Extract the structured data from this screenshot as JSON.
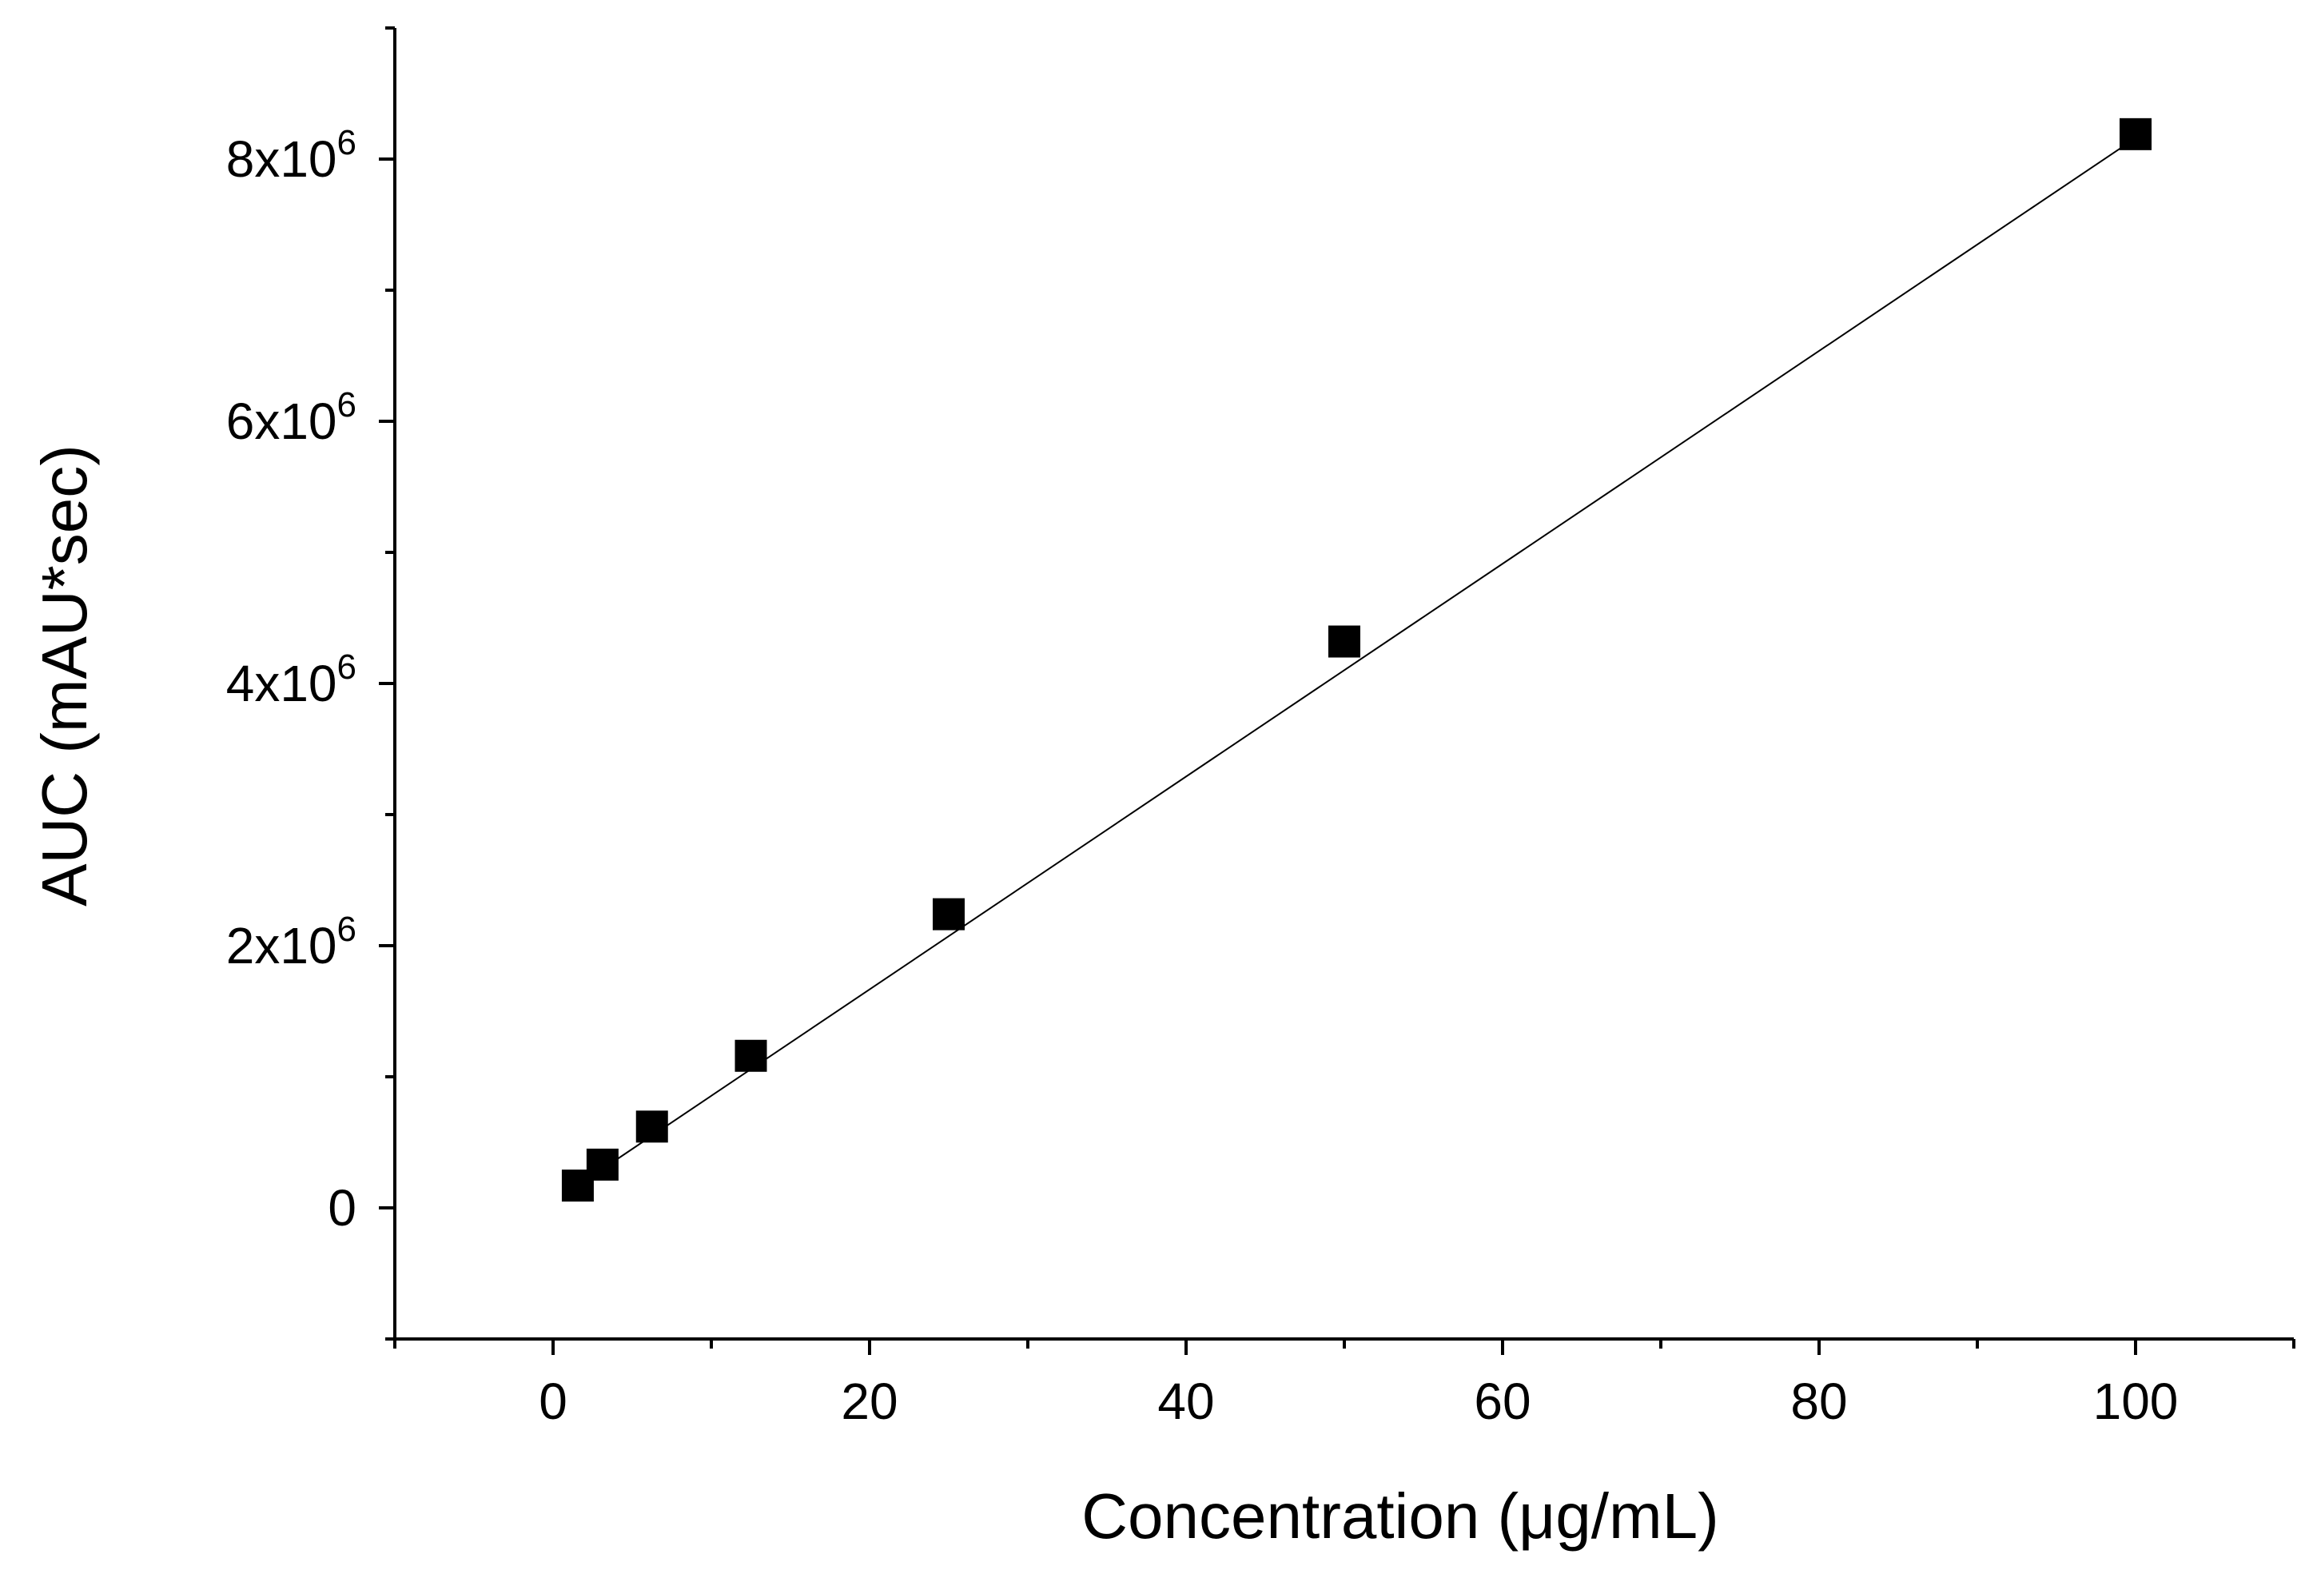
{
  "chart_data": {
    "type": "scatter",
    "title": "",
    "xlabel": "Concentration (μg/mL)",
    "ylabel": "AUC (mAU*sec)",
    "xlim": [
      -10,
      110
    ],
    "ylim": [
      -1000000,
      9000000
    ],
    "x_ticks": [
      {
        "value": 0,
        "label": "0"
      },
      {
        "value": 20,
        "label": "20"
      },
      {
        "value": 40,
        "label": "40"
      },
      {
        "value": 60,
        "label": "60"
      },
      {
        "value": 80,
        "label": "80"
      },
      {
        "value": 100,
        "label": "100"
      }
    ],
    "x_minor_ticks": [
      -10,
      10,
      30,
      50,
      70,
      90,
      110
    ],
    "y_ticks": [
      {
        "value": 0,
        "mantissa": "0",
        "exponent": ""
      },
      {
        "value": 2000000,
        "mantissa": "2x10",
        "exponent": "6"
      },
      {
        "value": 4000000,
        "mantissa": "4x10",
        "exponent": "6"
      },
      {
        "value": 6000000,
        "mantissa": "6x10",
        "exponent": "6"
      },
      {
        "value": 8000000,
        "mantissa": "8x10",
        "exponent": "6"
      }
    ],
    "y_minor_ticks": [
      -1000000,
      1000000,
      3000000,
      5000000,
      7000000,
      9000000
    ],
    "grid": false,
    "series": [
      {
        "name": "AUC",
        "marker": "square",
        "color": "#000000",
        "x": [
          1.5625,
          3.125,
          6.25,
          12.5,
          25,
          50,
          100
        ],
        "y": [
          170000,
          330000,
          620000,
          1160000,
          2240000,
          4320000,
          8190000
        ]
      }
    ],
    "fit_line": {
      "color": "#000000",
      "x": [
        1.5625,
        100
      ],
      "y": [
        170000,
        8160000
      ]
    }
  }
}
